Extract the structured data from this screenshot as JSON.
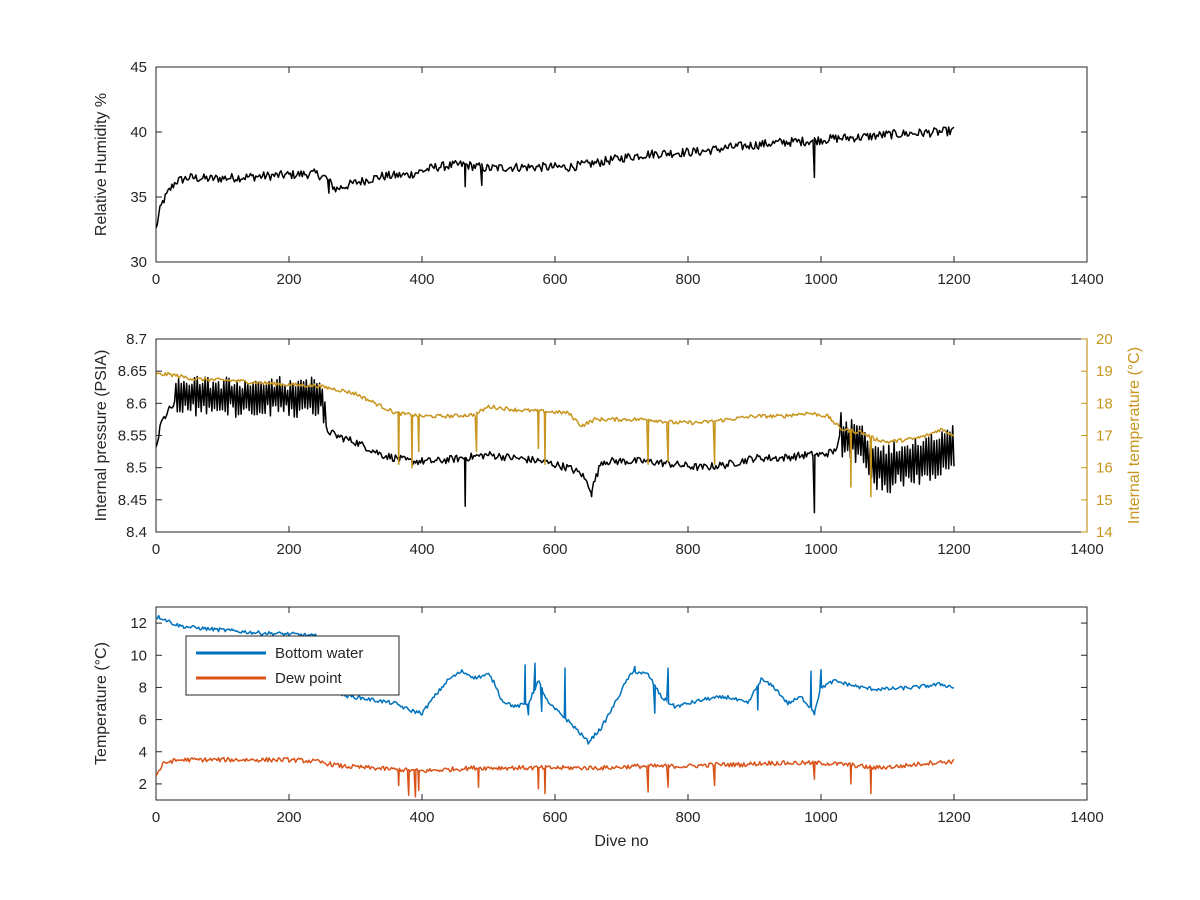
{
  "chart_data": [
    {
      "type": "line",
      "xlim": [
        0,
        1400
      ],
      "ylim": [
        30,
        45
      ],
      "xticks": [
        "0",
        "200",
        "400",
        "600",
        "800",
        "1000",
        "1200",
        "1400"
      ],
      "yticks": [
        "30",
        "35",
        "40",
        "45"
      ],
      "ylabel": "Relative Humidity %",
      "xlabel": "",
      "grid": false,
      "series": [
        {
          "color": "#000000",
          "x": [
            0,
            5,
            10,
            20,
            30,
            50,
            80,
            120,
            160,
            200,
            240,
            255,
            270,
            300,
            340,
            380,
            420,
            460,
            500,
            540,
            580,
            620,
            660,
            700,
            740,
            780,
            820,
            860,
            900,
            940,
            980,
            1020,
            1060,
            1100,
            1140,
            1180,
            1200
          ],
          "y": [
            32.5,
            33.8,
            34.6,
            35.5,
            36.2,
            36.5,
            36.4,
            36.5,
            36.6,
            36.7,
            36.8,
            36.5,
            35.6,
            36.1,
            36.6,
            36.7,
            37.3,
            37.5,
            37.2,
            37.3,
            37.3,
            37.3,
            37.6,
            38.0,
            38.3,
            38.4,
            38.5,
            38.8,
            39.0,
            39.2,
            39.3,
            39.5,
            39.6,
            39.8,
            39.9,
            40.0,
            40.1
          ],
          "noise": 0.35,
          "spikes": [
            [
              465,
              35.8
            ],
            [
              490,
              35.9
            ],
            [
              990,
              36.5
            ],
            [
              260,
              35.3
            ]
          ]
        }
      ]
    },
    {
      "type": "line",
      "xlim": [
        0,
        1400
      ],
      "ylim": [
        8.4,
        8.7
      ],
      "y2lim": [
        14,
        20
      ],
      "xticks": [
        "0",
        "200",
        "400",
        "600",
        "800",
        "1000",
        "1200",
        "1400"
      ],
      "yticks": [
        "8.4",
        "8.45",
        "8.5",
        "8.55",
        "8.6",
        "8.65",
        "8.7"
      ],
      "y2ticks": [
        "14",
        "15",
        "16",
        "17",
        "18",
        "19",
        "20"
      ],
      "ylabel": "Internal pressure (PSIA)",
      "y2label": "Internal temperature (°C)",
      "y2color": "#c8961e",
      "grid": false,
      "series": [
        {
          "axis": "left",
          "color": "#000000",
          "x": [
            0,
            8,
            20,
            30,
            35,
            60,
            100,
            150,
            200,
            250,
            255,
            270,
            300,
            320,
            340,
            360,
            380,
            420,
            460,
            500,
            540,
            580,
            600,
            620,
            640,
            655,
            670,
            700,
            740,
            780,
            820,
            860,
            900,
            940,
            980,
            1000,
            1020,
            1030,
            1060,
            1080,
            1100,
            1140,
            1180,
            1200
          ],
          "y": [
            8.53,
            8.57,
            8.59,
            8.6,
            8.61,
            8.61,
            8.61,
            8.61,
            8.61,
            8.61,
            8.56,
            8.55,
            8.54,
            8.53,
            8.52,
            8.515,
            8.51,
            8.51,
            8.515,
            8.52,
            8.515,
            8.51,
            8.505,
            8.5,
            8.49,
            8.465,
            8.51,
            8.51,
            8.51,
            8.505,
            8.5,
            8.505,
            8.515,
            8.515,
            8.52,
            8.52,
            8.525,
            8.55,
            8.54,
            8.505,
            8.5,
            8.51,
            8.52,
            8.53
          ],
          "noise": 0.006,
          "bands": [
            [
              30,
              255,
              0.03
            ],
            [
              1030,
              1200,
              0.035
            ]
          ],
          "spikes": [
            [
              465,
              8.44
            ],
            [
              655,
              8.455
            ],
            [
              990,
              8.43
            ]
          ]
        },
        {
          "axis": "right",
          "color": "#c8961e",
          "x": [
            0,
            20,
            60,
            120,
            180,
            240,
            280,
            300,
            330,
            360,
            400,
            440,
            480,
            500,
            540,
            580,
            620,
            640,
            660,
            700,
            740,
            780,
            820,
            860,
            900,
            940,
            980,
            1010,
            1030,
            1060,
            1080,
            1100,
            1120,
            1140,
            1160,
            1180,
            1200
          ],
          "y": [
            18.9,
            18.9,
            18.75,
            18.7,
            18.6,
            18.55,
            18.4,
            18.3,
            18.0,
            17.7,
            17.6,
            17.6,
            17.65,
            17.9,
            17.8,
            17.75,
            17.7,
            17.3,
            17.5,
            17.5,
            17.5,
            17.4,
            17.4,
            17.5,
            17.6,
            17.6,
            17.7,
            17.6,
            17.2,
            17.1,
            16.9,
            16.8,
            16.85,
            16.9,
            17.0,
            17.2,
            17.0
          ],
          "noise": 0.06,
          "spikes": [
            [
              365,
              16.1
            ],
            [
              385,
              16.0
            ],
            [
              395,
              16.5
            ],
            [
              482,
              16.5
            ],
            [
              575,
              16.6
            ],
            [
              585,
              16.1
            ],
            [
              740,
              16.1
            ],
            [
              770,
              16.2
            ],
            [
              840,
              16.1
            ],
            [
              1045,
              15.4
            ],
            [
              1075,
              15.1
            ]
          ]
        }
      ]
    },
    {
      "type": "line",
      "xlim": [
        0,
        1400
      ],
      "ylim": [
        1,
        13
      ],
      "xticks": [
        "0",
        "200",
        "400",
        "600",
        "800",
        "1000",
        "1200",
        "1400"
      ],
      "yticks": [
        "2",
        "4",
        "6",
        "8",
        "10",
        "12"
      ],
      "ylabel": "Temperature (°C)",
      "xlabel": "Dive no",
      "grid": false,
      "legend": {
        "position": "top-left",
        "entries": [
          "Bottom water",
          "Dew point"
        ]
      },
      "series": [
        {
          "name": "Bottom water",
          "color": "#0072bd",
          "x": [
            0,
            10,
            20,
            30,
            40,
            60,
            90,
            120,
            150,
            180,
            210,
            240,
            270,
            280,
            300,
            330,
            360,
            380,
            400,
            420,
            440,
            460,
            480,
            500,
            510,
            520,
            540,
            560,
            575,
            590,
            610,
            630,
            650,
            670,
            690,
            700,
            710,
            720,
            740,
            760,
            780,
            800,
            830,
            860,
            890,
            910,
            930,
            950,
            970,
            990,
            1000,
            1020,
            1040,
            1060,
            1080,
            1100,
            1140,
            1180,
            1200
          ],
          "y": [
            12.4,
            12.3,
            12.1,
            11.9,
            11.8,
            11.7,
            11.6,
            11.5,
            11.4,
            11.35,
            11.3,
            11.2,
            8.2,
            7.5,
            7.4,
            7.2,
            7.0,
            6.6,
            6.4,
            7.5,
            8.5,
            9.0,
            8.6,
            8.8,
            8.2,
            7.2,
            6.8,
            7.0,
            8.4,
            7.0,
            6.3,
            5.5,
            4.6,
            5.5,
            7.0,
            7.8,
            8.6,
            9.0,
            8.8,
            7.4,
            6.8,
            7.0,
            7.3,
            7.4,
            7.0,
            8.5,
            8.0,
            7.0,
            7.4,
            6.5,
            8.0,
            8.4,
            8.2,
            8.0,
            7.9,
            7.9,
            8.0,
            8.2,
            8.0
          ],
          "noise": 0.12,
          "spikes": [
            [
              555,
              9.4
            ],
            [
              560,
              6.3
            ],
            [
              570,
              9.5
            ],
            [
              580,
              6.5
            ],
            [
              615,
              9.2
            ],
            [
              720,
              9.3
            ],
            [
              750,
              6.4
            ],
            [
              770,
              9.2
            ],
            [
              905,
              6.6
            ],
            [
              985,
              9.0
            ],
            [
              990,
              6.3
            ],
            [
              1000,
              9.1
            ]
          ]
        },
        {
          "name": "Dew point",
          "color": "#d95319",
          "x": [
            0,
            10,
            20,
            40,
            80,
            120,
            160,
            200,
            240,
            280,
            320,
            360,
            400,
            440,
            480,
            520,
            560,
            600,
            640,
            680,
            720,
            760,
            800,
            840,
            880,
            920,
            960,
            1000,
            1040,
            1080,
            1120,
            1160,
            1200
          ],
          "y": [
            2.5,
            3.2,
            3.4,
            3.5,
            3.5,
            3.5,
            3.5,
            3.5,
            3.4,
            3.1,
            3.0,
            2.9,
            2.8,
            2.9,
            3.0,
            3.0,
            3.0,
            3.0,
            3.0,
            3.0,
            3.1,
            3.1,
            3.1,
            3.2,
            3.2,
            3.3,
            3.3,
            3.3,
            3.2,
            3.0,
            3.1,
            3.3,
            3.4
          ],
          "noise": 0.14,
          "spikes": [
            [
              365,
              1.9
            ],
            [
              380,
              1.3
            ],
            [
              390,
              1.2
            ],
            [
              395,
              1.6
            ],
            [
              485,
              1.8
            ],
            [
              575,
              1.7
            ],
            [
              585,
              1.4
            ],
            [
              740,
              1.5
            ],
            [
              770,
              1.8
            ],
            [
              840,
              1.9
            ],
            [
              990,
              2.3
            ],
            [
              1045,
              2.0
            ],
            [
              1075,
              1.4
            ]
          ]
        }
      ]
    }
  ]
}
